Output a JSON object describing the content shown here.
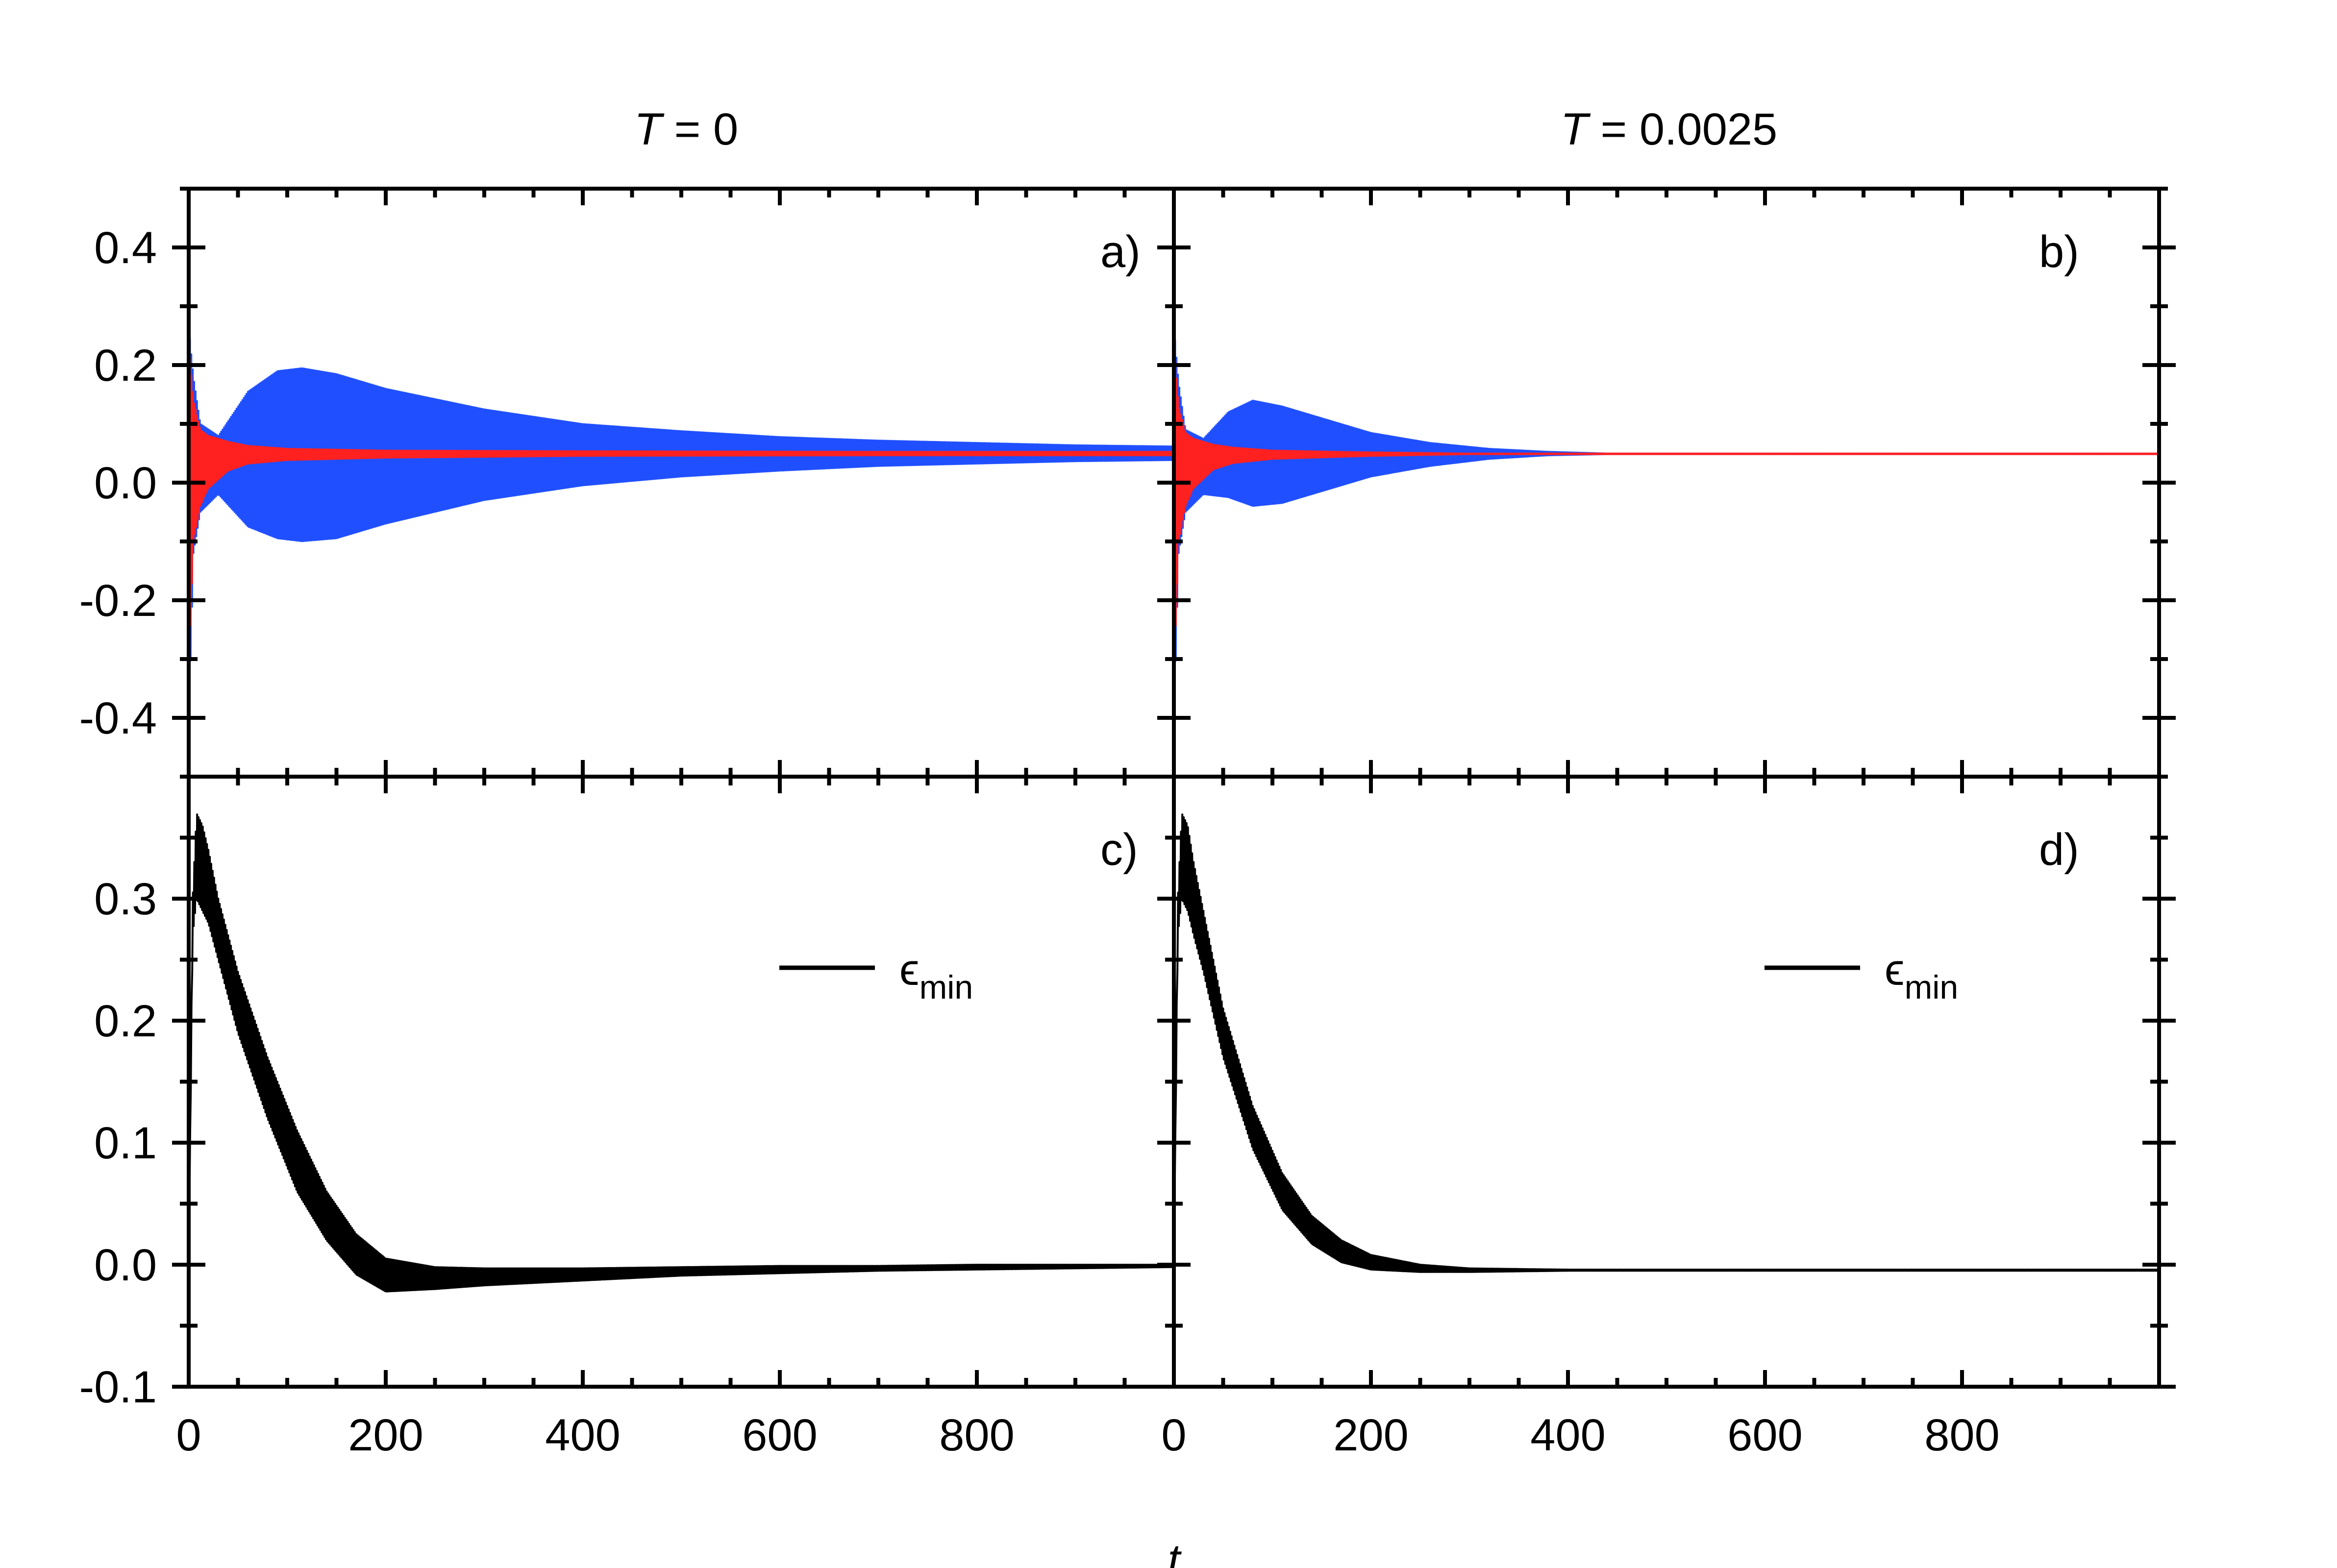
{
  "figure": {
    "column_titles": [
      {
        "var": "T",
        "rest": " = 0"
      },
      {
        "var": "T",
        "rest": " = 0.0025"
      }
    ],
    "x_axis_title": "t"
  },
  "chart_data": [
    {
      "id": "a",
      "type": "line",
      "panel_label": "a)",
      "column_title": "T = 0",
      "xlim": [
        0,
        1000
      ],
      "ylim": [
        -0.5,
        0.5
      ],
      "yticks": [
        -0.4,
        -0.2,
        0.0,
        0.2,
        0.4
      ],
      "ytick_labels": [
        "-0.4",
        "-0.2",
        "0.0",
        "0.2",
        "0.4"
      ],
      "xticks": [
        0,
        200,
        400,
        600,
        800,
        1000
      ],
      "series": [
        {
          "name": "blue",
          "color": "#1f4fff",
          "kind": "oscillation-band",
          "t": [
            0,
            5,
            12,
            30,
            60,
            90,
            115,
            150,
            200,
            300,
            400,
            500,
            600,
            700,
            800,
            900,
            1000
          ],
          "upper": [
            0.27,
            0.18,
            0.1,
            0.08,
            0.155,
            0.19,
            0.195,
            0.185,
            0.16,
            0.125,
            0.1,
            0.088,
            0.078,
            0.072,
            0.068,
            0.064,
            0.062
          ],
          "lower": [
            -0.44,
            -0.12,
            -0.05,
            -0.02,
            -0.075,
            -0.095,
            -0.1,
            -0.095,
            -0.07,
            -0.03,
            -0.005,
            0.01,
            0.02,
            0.028,
            0.032,
            0.036,
            0.038
          ]
        },
        {
          "name": "red",
          "color": "#ff2020",
          "kind": "oscillation-band",
          "t": [
            0,
            5,
            12,
            20,
            40,
            60,
            100,
            200,
            400,
            700,
            1000
          ],
          "upper": [
            0.24,
            0.14,
            0.09,
            0.08,
            0.07,
            0.063,
            0.058,
            0.055,
            0.054,
            0.053,
            0.053
          ],
          "lower": [
            -0.35,
            -0.1,
            -0.04,
            -0.01,
            0.02,
            0.032,
            0.038,
            0.042,
            0.045,
            0.046,
            0.046
          ]
        }
      ]
    },
    {
      "id": "b",
      "type": "line",
      "panel_label": "b)",
      "column_title": "T = 0.0025",
      "xlim": [
        0,
        1000
      ],
      "ylim": [
        -0.5,
        0.5
      ],
      "yticks": [
        -0.4,
        -0.2,
        0.0,
        0.2,
        0.4
      ],
      "xticks": [
        0,
        200,
        400,
        600,
        800,
        1000
      ],
      "series": [
        {
          "name": "blue",
          "color": "#1f4fff",
          "kind": "oscillation-band",
          "t": [
            0,
            5,
            12,
            30,
            55,
            80,
            110,
            150,
            200,
            260,
            320,
            380,
            440,
            1000
          ],
          "upper": [
            0.27,
            0.17,
            0.09,
            0.075,
            0.12,
            0.14,
            0.13,
            0.11,
            0.085,
            0.068,
            0.058,
            0.053,
            0.05,
            0.05
          ],
          "lower": [
            -0.44,
            -0.12,
            -0.05,
            -0.02,
            -0.025,
            -0.04,
            -0.035,
            -0.015,
            0.01,
            0.028,
            0.04,
            0.046,
            0.048,
            0.048
          ]
        },
        {
          "name": "red",
          "color": "#ff2020",
          "kind": "oscillation-band",
          "t": [
            0,
            5,
            12,
            20,
            40,
            60,
            100,
            200,
            300,
            1000
          ],
          "upper": [
            0.24,
            0.13,
            0.085,
            0.075,
            0.065,
            0.06,
            0.055,
            0.052,
            0.05,
            0.05
          ],
          "lower": [
            -0.35,
            -0.1,
            -0.04,
            -0.01,
            0.022,
            0.033,
            0.04,
            0.045,
            0.048,
            0.048
          ]
        }
      ]
    },
    {
      "id": "c",
      "type": "line",
      "panel_label": "c)",
      "xlim": [
        0,
        1000
      ],
      "ylim": [
        -0.1,
        0.4
      ],
      "yticks": [
        -0.1,
        0.0,
        0.1,
        0.2,
        0.3
      ],
      "ytick_labels": [
        "-0.1",
        "0.0",
        "0.1",
        "0.2",
        "0.3"
      ],
      "xticks": [
        0,
        200,
        400,
        600,
        800,
        1000
      ],
      "xtick_labels": [
        "0",
        "200",
        "400",
        "600",
        "800"
      ],
      "legend": {
        "symbol": "ϵ",
        "subscript": "min",
        "placement": "upper-right"
      },
      "series": [
        {
          "name": "ϵmin",
          "color": "#000000",
          "kind": "oscillation-band",
          "t": [
            0,
            4,
            8,
            14,
            20,
            30,
            50,
            80,
            110,
            140,
            170,
            200,
            250,
            300,
            400,
            500,
            600,
            700,
            800,
            900,
            1000
          ],
          "upper": [
            0.0,
            0.3,
            0.37,
            0.36,
            0.34,
            0.3,
            0.24,
            0.17,
            0.11,
            0.06,
            0.025,
            0.005,
            -0.002,
            -0.003,
            -0.003,
            -0.002,
            -0.001,
            -0.001,
            0.0,
            0.0,
            0.0
          ],
          "lower": [
            0.0,
            0.27,
            0.3,
            0.29,
            0.28,
            0.25,
            0.19,
            0.12,
            0.06,
            0.02,
            -0.008,
            -0.022,
            -0.02,
            -0.017,
            -0.013,
            -0.009,
            -0.007,
            -0.005,
            -0.004,
            -0.003,
            -0.002
          ]
        }
      ]
    },
    {
      "id": "d",
      "type": "line",
      "panel_label": "d)",
      "xlim": [
        0,
        1000
      ],
      "ylim": [
        -0.1,
        0.4
      ],
      "yticks": [
        -0.1,
        0.0,
        0.1,
        0.2,
        0.3
      ],
      "xticks": [
        0,
        200,
        400,
        600,
        800,
        1000
      ],
      "xtick_labels": [
        "0",
        "200",
        "400",
        "600",
        "800"
      ],
      "legend": {
        "symbol": "ϵ",
        "subscript": "min",
        "placement": "upper-right"
      },
      "series": [
        {
          "name": "ϵmin",
          "color": "#000000",
          "kind": "oscillation-band",
          "t": [
            0,
            4,
            8,
            14,
            20,
            30,
            50,
            80,
            110,
            140,
            170,
            200,
            250,
            300,
            400,
            600,
            1000
          ],
          "upper": [
            0.0,
            0.3,
            0.37,
            0.36,
            0.33,
            0.29,
            0.21,
            0.13,
            0.075,
            0.04,
            0.02,
            0.008,
            0.0,
            -0.003,
            -0.004,
            -0.004,
            -0.004
          ],
          "lower": [
            0.0,
            0.27,
            0.3,
            0.29,
            0.27,
            0.24,
            0.17,
            0.095,
            0.045,
            0.017,
            0.002,
            -0.004,
            -0.006,
            -0.006,
            -0.005,
            -0.005,
            -0.005
          ]
        }
      ]
    }
  ]
}
